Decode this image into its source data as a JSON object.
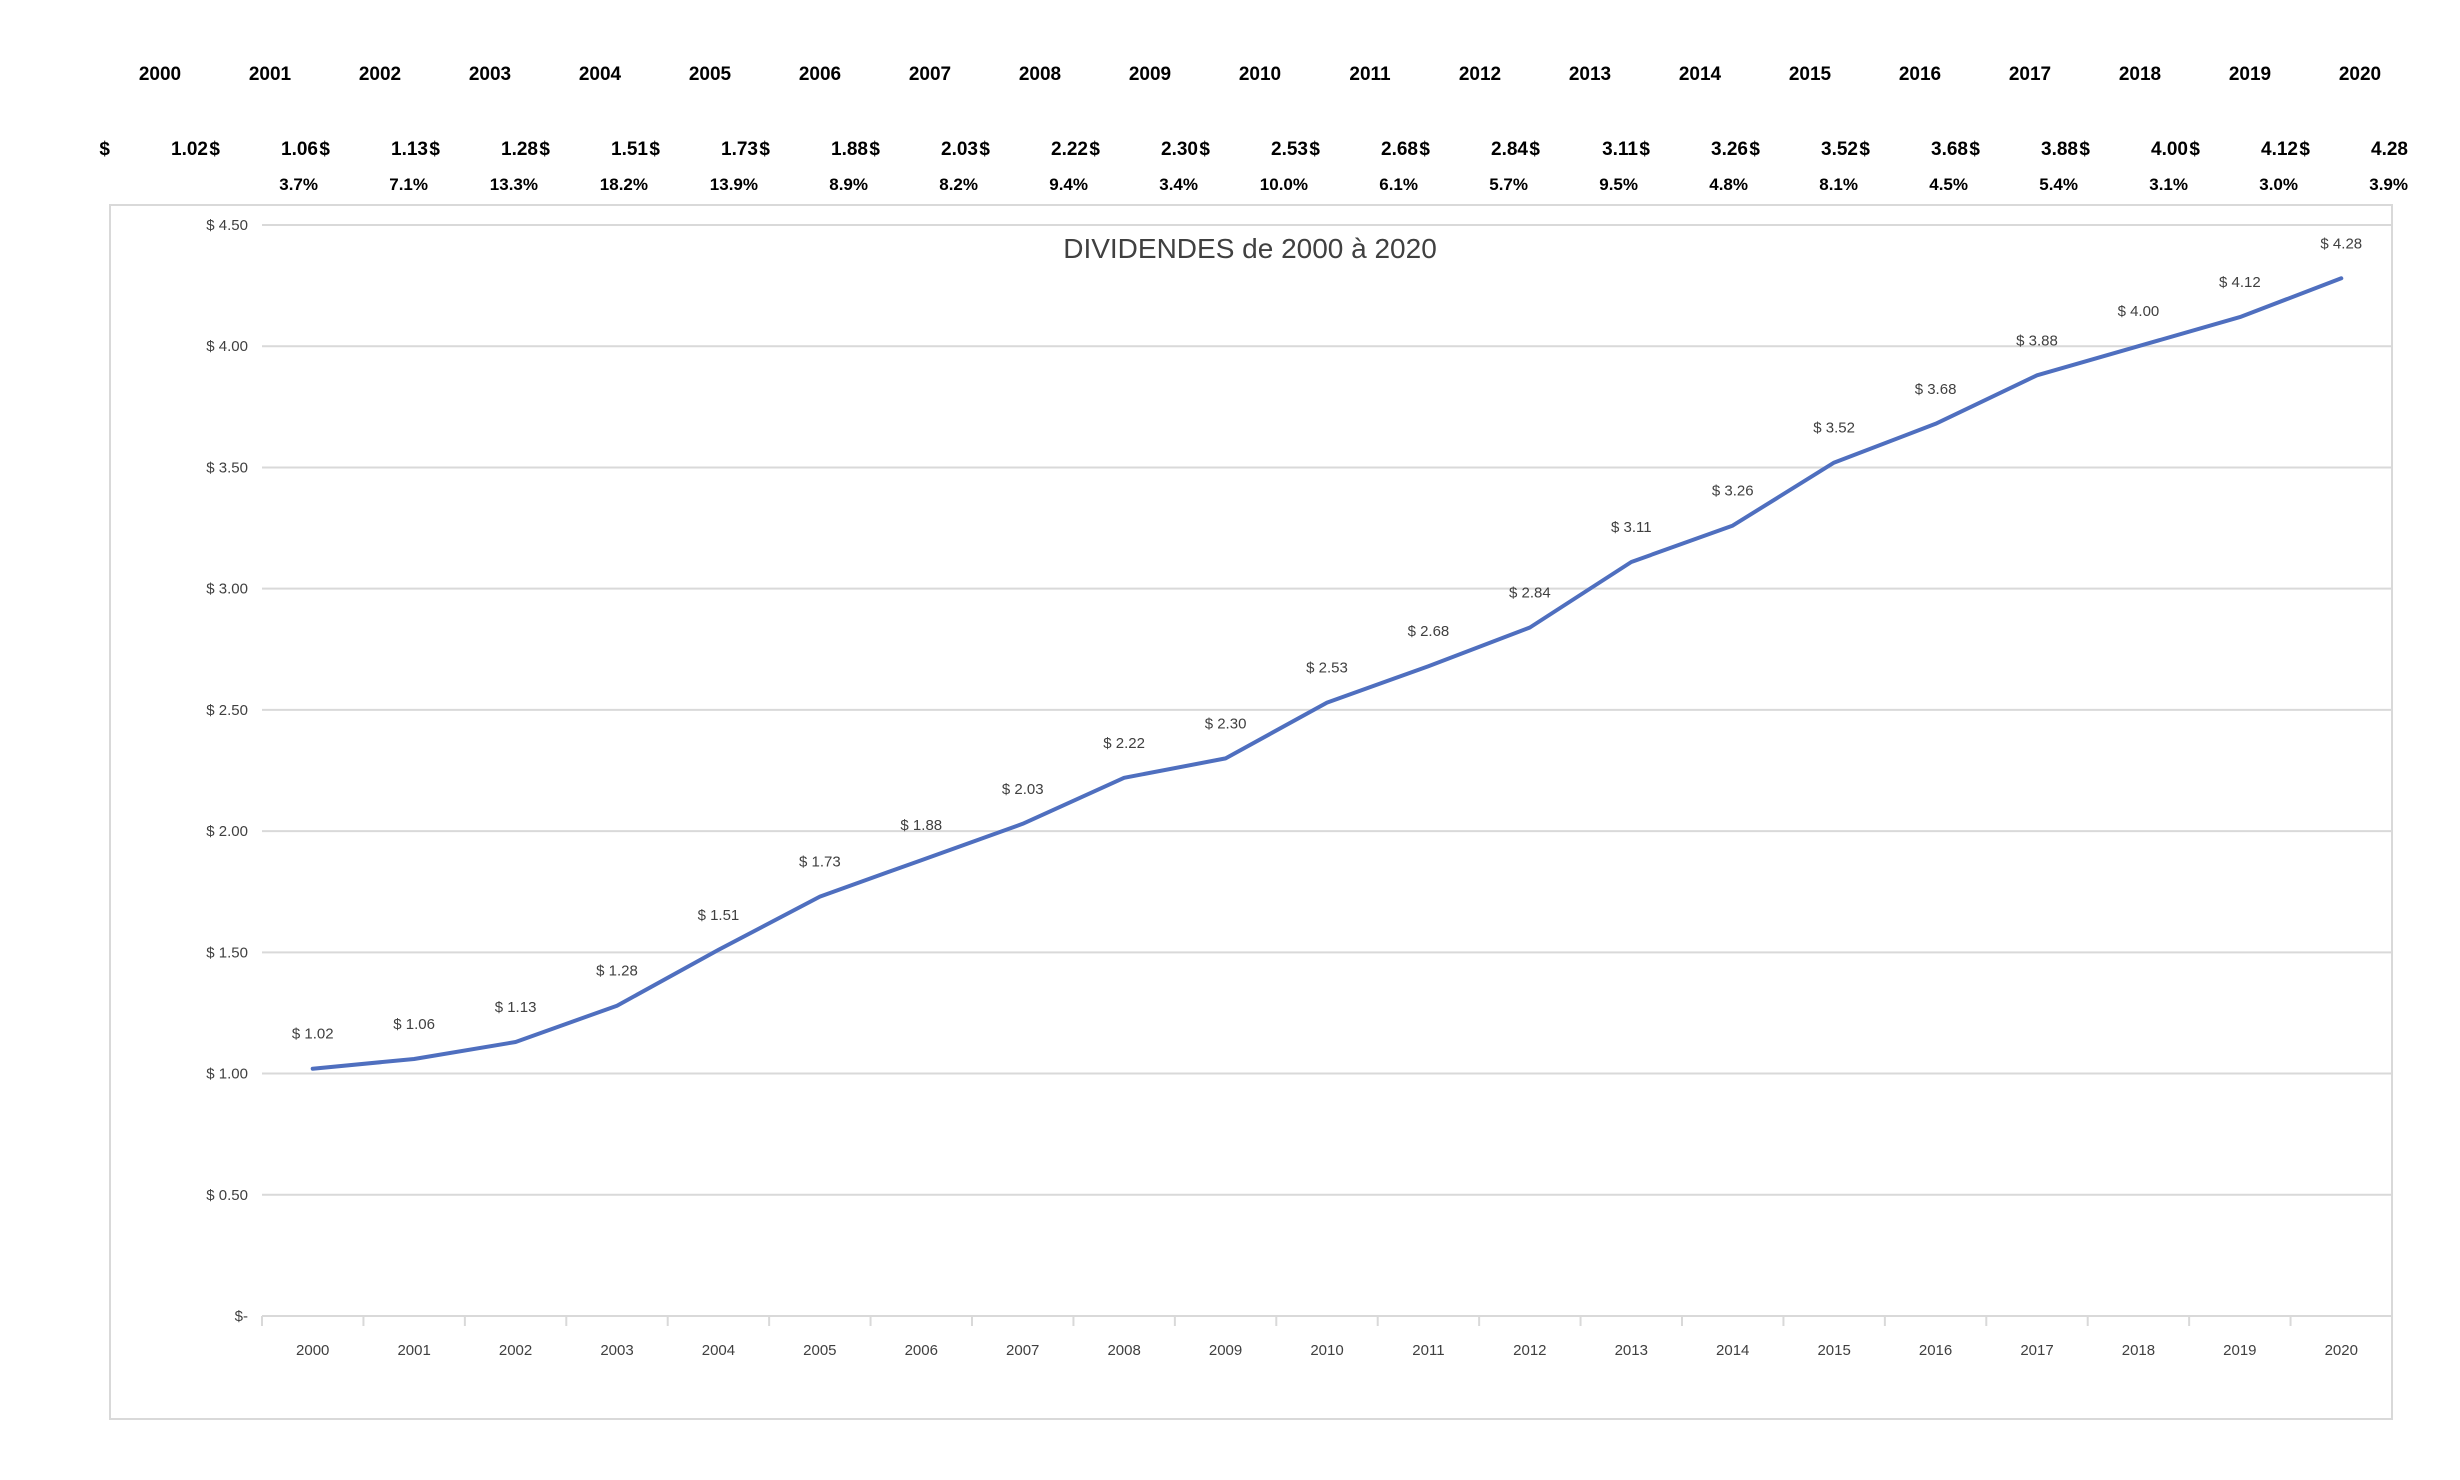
{
  "table": {
    "years": [
      "2000",
      "2001",
      "2002",
      "2003",
      "2004",
      "2005",
      "2006",
      "2007",
      "2008",
      "2009",
      "2010",
      "2011",
      "2012",
      "2013",
      "2014",
      "2015",
      "2016",
      "2017",
      "2018",
      "2019",
      "2020"
    ],
    "currency_symbol": "$",
    "dividends": [
      "1.02",
      "1.06",
      "1.13",
      "1.28",
      "1.51",
      "1.73",
      "1.88",
      "2.03",
      "2.22",
      "2.30",
      "2.53",
      "2.68",
      "2.84",
      "3.11",
      "3.26",
      "3.52",
      "3.68",
      "3.88",
      "4.00",
      "4.12",
      "4.28"
    ],
    "growth": [
      "",
      "3.7%",
      "7.1%",
      "13.3%",
      "18.2%",
      "13.9%",
      "8.9%",
      "8.2%",
      "9.4%",
      "3.4%",
      "10.0%",
      "6.1%",
      "5.7%",
      "9.5%",
      "4.8%",
      "8.1%",
      "4.5%",
      "5.4%",
      "3.1%",
      "3.0%",
      "3.9%"
    ]
  },
  "chart_data": {
    "type": "line",
    "title": "DIVIDENDES de  2000 à 2020",
    "xlabel": "",
    "ylabel": "",
    "categories": [
      "2000",
      "2001",
      "2002",
      "2003",
      "2004",
      "2005",
      "2006",
      "2007",
      "2008",
      "2009",
      "2010",
      "2011",
      "2012",
      "2013",
      "2014",
      "2015",
      "2016",
      "2017",
      "2018",
      "2019",
      "2020"
    ],
    "series": [
      {
        "values": [
          1.02,
          1.06,
          1.13,
          1.28,
          1.51,
          1.73,
          1.88,
          2.03,
          2.22,
          2.3,
          2.53,
          2.68,
          2.84,
          3.11,
          3.26,
          3.52,
          3.68,
          3.88,
          4.0,
          4.12,
          4.28
        ],
        "data_labels": [
          "$ 1.02",
          "$ 1.06",
          "$ 1.13",
          "$ 1.28",
          "$ 1.51",
          "$ 1.73",
          "$ 1.88",
          "$ 2.03",
          "$ 2.22",
          "$ 2.30",
          "$ 2.53",
          "$ 2.68",
          "$ 2.84",
          "$ 3.11",
          "$ 3.26",
          "$ 3.52",
          "$ 3.68",
          "$ 3.88",
          "$ 4.00",
          "$ 4.12",
          "$ 4.28"
        ]
      }
    ],
    "ylim": [
      0,
      4.5
    ],
    "y_ticks": [
      0,
      0.5,
      1,
      1.5,
      2,
      2.5,
      3,
      3.5,
      4,
      4.5
    ],
    "y_tick_labels": [
      "$-",
      "$ 0.50",
      "$ 1.00",
      "$ 1.50",
      "$ 2.00",
      "$ 2.50",
      "$ 3.00",
      "$ 3.50",
      "$ 4.00",
      "$ 4.50"
    ],
    "grid": true,
    "legend": "none",
    "colors": {
      "line": "#4f6fbf",
      "grid": "#d9d9d9",
      "frame": "#d9d9d9"
    }
  }
}
